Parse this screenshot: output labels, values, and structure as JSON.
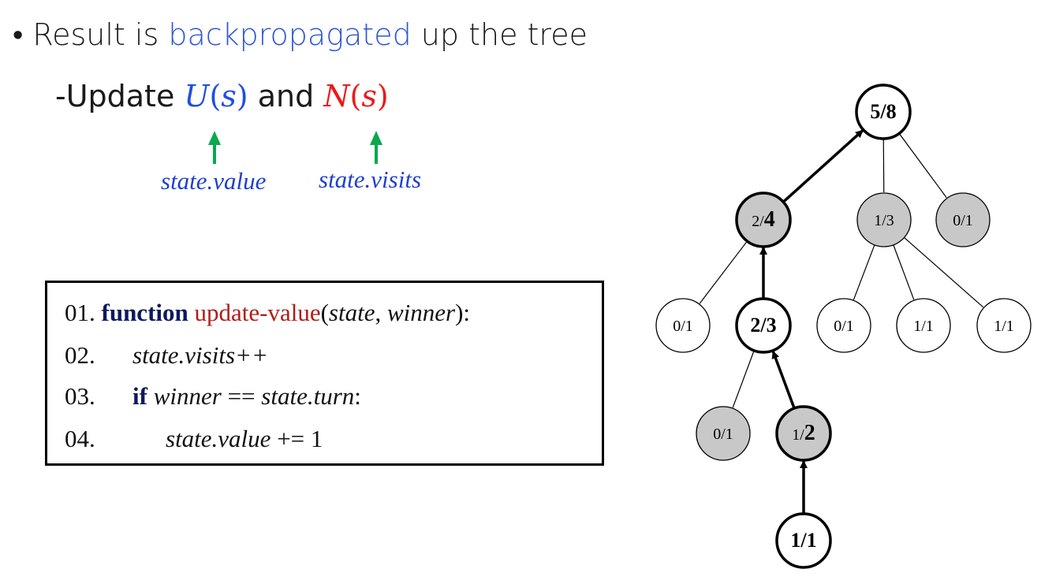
{
  "slide": {
    "bullet": {
      "prefix": "Result is ",
      "highlight": "backpropagated",
      "suffix": " up the tree"
    },
    "sub_bullet": {
      "dash": "-",
      "text_before": "Update ",
      "u_symbol": "U",
      "s_arg": "s",
      "and_text": " and ",
      "n_symbol": "N"
    },
    "annotations": {
      "value_label": "state.value",
      "visits_label": "state.visits"
    },
    "colors": {
      "blue_text": "#2f55d4",
      "u_color": "#1f4fe0",
      "n_color": "#e81c1c",
      "arrow_green": "#0aa84f",
      "node_gray": "#c8c8c8"
    }
  },
  "code": {
    "lines": [
      {
        "num": "01.",
        "keyword": "function",
        "name": "update-value",
        "open": "(",
        "arg1": "state",
        "comma": ", ",
        "arg2": "winner",
        "close": "):"
      },
      {
        "num": "02.",
        "text": "state.visits++"
      },
      {
        "num": "03.",
        "keyword": "if",
        "cond_a": "winner",
        "op": " == ",
        "cond_b": "state.turn",
        "colon": ":"
      },
      {
        "num": "04.",
        "lhs": "state.value",
        "rhs": " += 1"
      }
    ]
  },
  "tree": {
    "nodes": [
      {
        "id": "root",
        "num": "5",
        "den": "8",
        "fill": "white",
        "bold": true
      },
      {
        "id": "a",
        "num": "2",
        "den": "4",
        "fill": "gray",
        "bold": "den"
      },
      {
        "id": "b",
        "num": "1",
        "den": "3",
        "fill": "gray",
        "bold": false
      },
      {
        "id": "c",
        "num": "0",
        "den": "1",
        "fill": "gray",
        "bold": false
      },
      {
        "id": "a1",
        "num": "0",
        "den": "1",
        "fill": "white",
        "bold": false
      },
      {
        "id": "a2",
        "num": "2",
        "den": "3",
        "fill": "white",
        "bold": true
      },
      {
        "id": "b1",
        "num": "0",
        "den": "1",
        "fill": "white",
        "bold": false
      },
      {
        "id": "b2",
        "num": "1",
        "den": "1",
        "fill": "white",
        "bold": false
      },
      {
        "id": "b3",
        "num": "1",
        "den": "1",
        "fill": "white",
        "bold": false
      },
      {
        "id": "a21",
        "num": "0",
        "den": "1",
        "fill": "gray",
        "bold": false
      },
      {
        "id": "a22",
        "num": "1",
        "den": "2",
        "fill": "gray",
        "bold": "den"
      },
      {
        "id": "leaf",
        "num": "1",
        "den": "1",
        "fill": "white",
        "bold": true
      }
    ],
    "edges": [
      {
        "from": "a",
        "to": "root",
        "arrow": true
      },
      {
        "from": "root",
        "to": "b",
        "arrow": false
      },
      {
        "from": "root",
        "to": "c",
        "arrow": false
      },
      {
        "from": "a",
        "to": "a1",
        "arrow": false
      },
      {
        "from": "a2",
        "to": "a",
        "arrow": true
      },
      {
        "from": "b",
        "to": "b1",
        "arrow": false
      },
      {
        "from": "b",
        "to": "b2",
        "arrow": false
      },
      {
        "from": "b",
        "to": "b3",
        "arrow": false
      },
      {
        "from": "a2",
        "to": "a21",
        "arrow": false
      },
      {
        "from": "a22",
        "to": "a2",
        "arrow": true
      },
      {
        "from": "leaf",
        "to": "a22",
        "arrow": true
      }
    ]
  }
}
